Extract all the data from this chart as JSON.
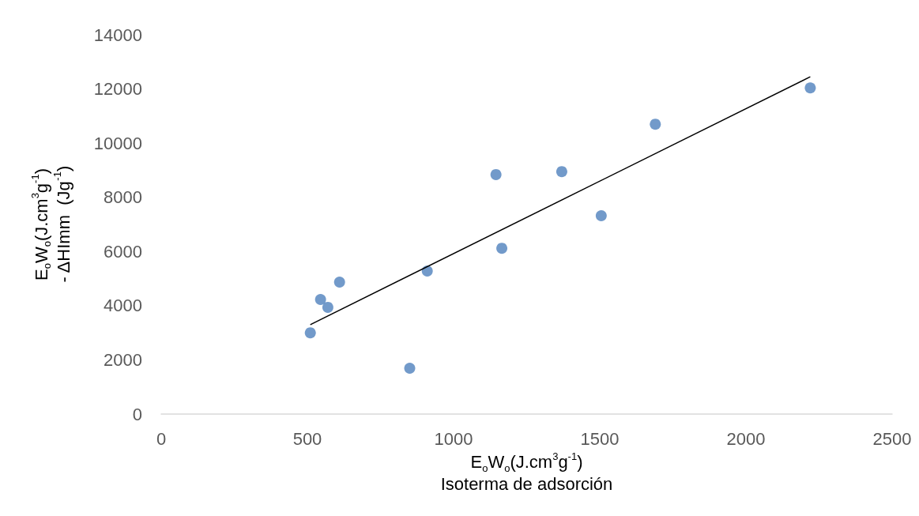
{
  "chart_data": {
    "type": "scatter",
    "xlabel": "E$_{o}$W$_{o}$(J.cm$^{3}$g$^{-1}$)\nIsoterma de adsorción",
    "ylabel": "E$_{o}$W$_{o}$(J.cm$^{3}$g$^{-1}$)\n- ΔHImm  (Jg$^{-1}$)",
    "xlim": [
      0,
      2500
    ],
    "xticks": [
      0,
      500,
      1000,
      1500,
      2000,
      2500
    ],
    "ylim": [
      0,
      14000
    ],
    "yticks": [
      0,
      2000,
      4000,
      6000,
      8000,
      10000,
      12000,
      14000
    ],
    "grid": false,
    "series": [
      {
        "color": "#4f81bd",
        "marker": "circle",
        "x": [
          510,
          545,
          570,
          610,
          850,
          910,
          1145,
          1165,
          1370,
          1505,
          1690,
          2220
        ],
        "values": [
          3000,
          4230,
          3940,
          4870,
          1690,
          5280,
          8840,
          6120,
          8950,
          7320,
          10700,
          12040
        ]
      },
      {
        "type": "line",
        "color": "#000000",
        "marker": "none",
        "line_style": "solid",
        "x": [
          510,
          2220
        ],
        "values": [
          3300,
          12450
        ]
      }
    ]
  }
}
